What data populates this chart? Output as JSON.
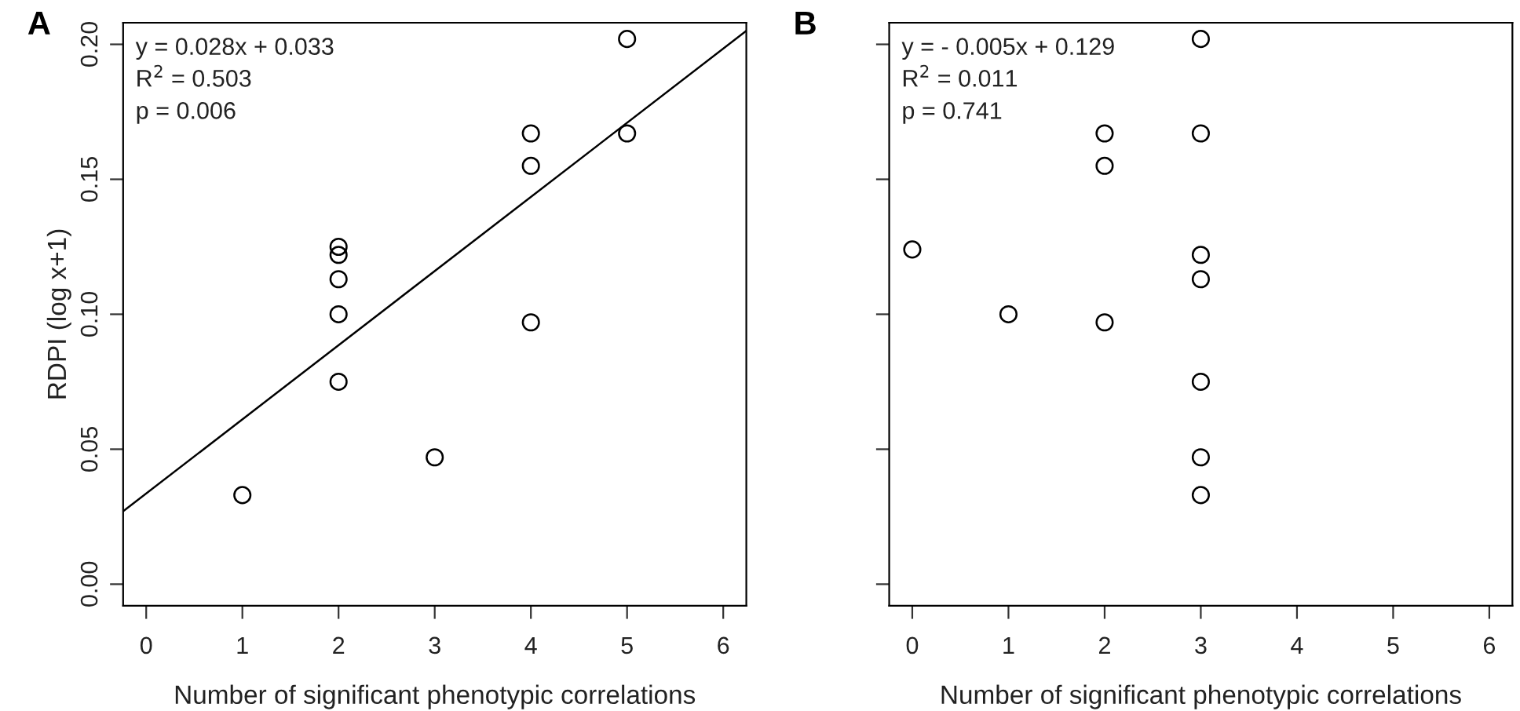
{
  "chart_data": [
    {
      "type": "scatter",
      "title": "A",
      "xlabel": "Number of significant phenotypic correlations",
      "ylabel": "RDPI (log x+1)",
      "annotations": [
        "y = 0.028x + 0.033",
        "R$^{2}$ = 0.503",
        "p = 0.006"
      ],
      "series": [
        {
          "color": "#000000",
          "marker": "circle",
          "x": [
            1,
            2,
            2,
            2,
            2,
            2,
            3,
            4,
            4,
            4,
            5,
            5
          ],
          "values": [
            0.033,
            0.125,
            0.122,
            0.113,
            0.1,
            0.075,
            0.047,
            0.167,
            0.155,
            0.097,
            0.202,
            0.167
          ]
        },
        {
          "type": "line",
          "color": "#000000",
          "line_style": "solid",
          "x": [
            -0.24,
            6.24
          ],
          "values": [
            0.027,
            0.205
          ]
        }
      ],
      "xlim": [
        -0.24,
        6.24
      ],
      "ylim": [
        -0.008,
        0.208
      ],
      "xticks": [
        0,
        1,
        2,
        3,
        4,
        5,
        6
      ],
      "yticks": [
        {
          "value": 0.0,
          "label": "0.00"
        },
        0.05,
        {
          "value": 0.1,
          "label": "0.10"
        },
        0.15,
        {
          "value": 0.2,
          "label": "0.20"
        }
      ],
      "grid": false,
      "legend": false
    },
    {
      "type": "scatter",
      "title": "B",
      "xlabel": "Number of significant phenotypic correlations",
      "annotations": [
        "y = - 0.005x + 0.129",
        "R$^{2}$ = 0.011",
        "p = 0.741"
      ],
      "series": [
        {
          "color": "#000000",
          "marker": "circle",
          "x": [
            0,
            1,
            2,
            2,
            2,
            3,
            3,
            3,
            3,
            3,
            3,
            3
          ],
          "values": [
            0.124,
            0.1,
            0.167,
            0.155,
            0.097,
            0.202,
            0.167,
            0.122,
            0.113,
            0.075,
            0.047,
            0.033
          ]
        }
      ],
      "xlim": [
        -0.24,
        6.24
      ],
      "ylim": [
        -0.008,
        0.208
      ],
      "xticks": [
        0,
        1,
        2,
        3,
        4,
        5,
        6
      ],
      "yticks": [
        0.0,
        0.05,
        0.1,
        0.15,
        0.2
      ],
      "tick_labels": "x",
      "grid": false,
      "legend": false
    }
  ]
}
